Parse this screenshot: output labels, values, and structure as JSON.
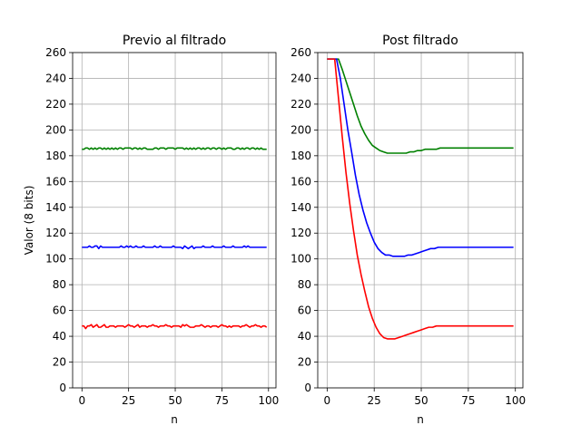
{
  "chart_data": [
    {
      "type": "line",
      "title": "Previo al filtrado",
      "xlabel": "n",
      "ylabel": "Valor (8 bits)",
      "xlim": [
        -5,
        104
      ],
      "ylim": [
        0,
        260
      ],
      "xticks": [
        0,
        25,
        50,
        75,
        100
      ],
      "yticks": [
        0,
        20,
        40,
        60,
        80,
        100,
        120,
        140,
        160,
        180,
        200,
        220,
        240,
        260
      ],
      "grid": true,
      "series": [
        {
          "color": "#008000",
          "x_start": 0,
          "values": [
            185,
            185,
            186,
            186,
            185,
            186,
            185,
            186,
            185,
            186,
            186,
            185,
            186,
            185,
            186,
            185,
            186,
            185,
            186,
            185,
            186,
            186,
            185,
            186,
            186,
            186,
            186,
            185,
            186,
            186,
            185,
            186,
            185,
            186,
            186,
            185,
            185,
            185,
            185,
            186,
            186,
            185,
            186,
            186,
            186,
            185,
            186,
            186,
            186,
            186,
            185,
            186,
            186,
            186,
            186,
            185,
            186,
            185,
            186,
            185,
            186,
            185,
            186,
            186,
            185,
            186,
            185,
            186,
            186,
            185,
            186,
            186,
            185,
            186,
            186,
            185,
            186,
            185,
            186,
            186,
            186,
            185,
            185,
            186,
            186,
            185,
            186,
            185,
            186,
            186,
            185,
            186,
            186,
            185,
            186,
            185,
            186,
            185,
            185,
            185
          ]
        },
        {
          "color": "#0000ff",
          "x_start": 0,
          "values": [
            109,
            109,
            109,
            109,
            110,
            109,
            109,
            110,
            110,
            108,
            110,
            109,
            109,
            109,
            109,
            109,
            109,
            109,
            109,
            109,
            109,
            110,
            109,
            109,
            110,
            109,
            110,
            109,
            109,
            110,
            109,
            109,
            109,
            110,
            109,
            109,
            109,
            109,
            109,
            110,
            109,
            109,
            110,
            109,
            109,
            109,
            109,
            109,
            109,
            110,
            109,
            109,
            109,
            109,
            108,
            110,
            109,
            108,
            109,
            110,
            108,
            109,
            109,
            109,
            109,
            110,
            109,
            109,
            109,
            109,
            110,
            109,
            109,
            109,
            109,
            109,
            110,
            109,
            109,
            109,
            109,
            110,
            109,
            109,
            109,
            109,
            109,
            110,
            109,
            110,
            109,
            109,
            109,
            109,
            109,
            109,
            109,
            109,
            109,
            109
          ]
        },
        {
          "color": "#ff0000",
          "x_start": 0,
          "values": [
            48,
            48,
            46,
            48,
            48,
            49,
            47,
            48,
            49,
            47,
            47,
            48,
            49,
            47,
            47,
            48,
            48,
            48,
            47,
            48,
            48,
            48,
            48,
            47,
            48,
            49,
            48,
            48,
            47,
            48,
            49,
            47,
            48,
            48,
            48,
            47,
            48,
            48,
            49,
            48,
            48,
            47,
            48,
            48,
            48,
            49,
            48,
            48,
            47,
            48,
            48,
            48,
            48,
            47,
            49,
            48,
            49,
            48,
            47,
            47,
            47,
            48,
            48,
            48,
            49,
            48,
            47,
            48,
            48,
            47,
            48,
            48,
            48,
            47,
            48,
            49,
            48,
            48,
            47,
            48,
            47,
            48,
            48,
            48,
            48,
            47,
            48,
            48,
            49,
            48,
            47,
            48,
            48,
            49,
            48,
            48,
            47,
            48,
            48,
            47
          ]
        }
      ]
    },
    {
      "type": "line",
      "title": "Post filtrado",
      "xlabel": "n",
      "ylabel": "",
      "xlim": [
        -5,
        104
      ],
      "ylim": [
        0,
        260
      ],
      "xticks": [
        0,
        25,
        50,
        75,
        100
      ],
      "yticks": [
        0,
        20,
        40,
        60,
        80,
        100,
        120,
        140,
        160,
        180,
        200,
        220,
        240,
        260
      ],
      "grid": true,
      "series": [
        {
          "color": "#008000",
          "x": [
            0,
            6,
            8,
            10,
            12,
            14,
            16,
            18,
            20,
            22,
            24,
            26,
            28,
            30,
            32,
            34,
            36,
            38,
            40,
            42,
            44,
            46,
            48,
            50,
            52,
            54,
            56,
            58,
            60,
            65,
            70,
            80,
            90,
            99
          ],
          "values": [
            255,
            255,
            247,
            238,
            229,
            220,
            211,
            203,
            197,
            192,
            188,
            186,
            184,
            183,
            182,
            182,
            182,
            182,
            182,
            182,
            183,
            183,
            184,
            184,
            185,
            185,
            185,
            185,
            186,
            186,
            186,
            186,
            186,
            186
          ]
        },
        {
          "color": "#0000ff",
          "x": [
            0,
            5,
            7,
            9,
            11,
            13,
            15,
            17,
            19,
            21,
            23,
            25,
            27,
            29,
            31,
            33,
            35,
            37,
            39,
            41,
            43,
            45,
            47,
            49,
            51,
            53,
            55,
            57,
            59,
            65,
            70,
            80,
            90,
            99
          ],
          "values": [
            255,
            255,
            240,
            220,
            200,
            183,
            165,
            150,
            138,
            128,
            120,
            113,
            108,
            105,
            103,
            103,
            102,
            102,
            102,
            102,
            103,
            103,
            104,
            105,
            106,
            107,
            108,
            108,
            109,
            109,
            109,
            109,
            109,
            109
          ]
        },
        {
          "color": "#ff0000",
          "x": [
            0,
            4,
            6,
            8,
            10,
            12,
            14,
            16,
            18,
            20,
            22,
            24,
            26,
            28,
            30,
            32,
            34,
            36,
            38,
            40,
            42,
            44,
            46,
            48,
            50,
            52,
            54,
            56,
            58,
            60,
            65,
            70,
            80,
            90,
            99
          ],
          "values": [
            255,
            255,
            225,
            195,
            167,
            143,
            122,
            103,
            88,
            75,
            63,
            54,
            47,
            42,
            39,
            38,
            38,
            38,
            39,
            40,
            41,
            42,
            43,
            44,
            45,
            46,
            47,
            47,
            48,
            48,
            48,
            48,
            48,
            48,
            48
          ]
        }
      ]
    }
  ]
}
